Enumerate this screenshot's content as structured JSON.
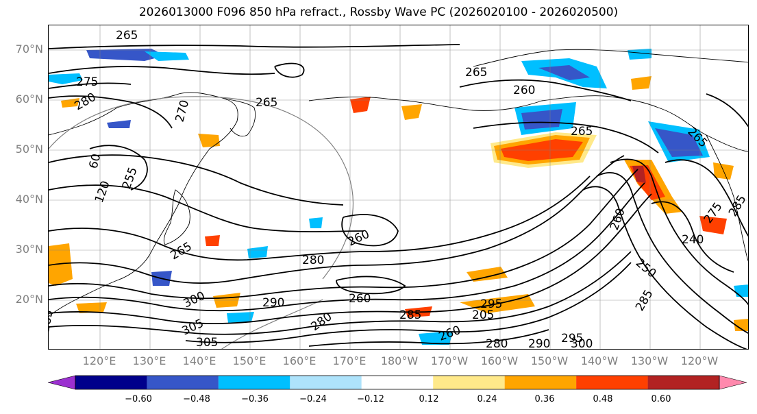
{
  "title": "2026013000 F096 850 hPa refract., Rossby Wave PC (2026020100 - 2026020500)",
  "map": {
    "projection": "equirectangular",
    "lon_range": "110°E to 117°W",
    "lat_range": "10°N to 75°N",
    "lat_ticks": [
      "20°N",
      "30°N",
      "40°N",
      "50°N",
      "60°N",
      "70°N"
    ],
    "lon_ticks": [
      "120°E",
      "130°E",
      "140°E",
      "150°E",
      "160°E",
      "170°E",
      "180°W",
      "170°W",
      "160°W",
      "150°W",
      "140°W",
      "130°W",
      "120°W"
    ],
    "contour_color": "#000000",
    "grid_color": "#808080"
  },
  "contour_labels": [
    {
      "text": "265"
    },
    {
      "text": "275"
    },
    {
      "text": "280"
    },
    {
      "text": "270"
    },
    {
      "text": "265"
    },
    {
      "text": "260"
    },
    {
      "text": "265"
    },
    {
      "text": "265"
    },
    {
      "text": "260"
    },
    {
      "text": "280"
    },
    {
      "text": "265"
    },
    {
      "text": "260"
    },
    {
      "text": "290"
    },
    {
      "text": "285"
    },
    {
      "text": "280"
    },
    {
      "text": "260"
    },
    {
      "text": "280"
    },
    {
      "text": "290"
    },
    {
      "text": "295"
    },
    {
      "text": "300"
    },
    {
      "text": "300"
    },
    {
      "text": "305"
    },
    {
      "text": "305"
    },
    {
      "text": "285"
    },
    {
      "text": "240"
    },
    {
      "text": "250"
    },
    {
      "text": "260"
    },
    {
      "text": "255"
    },
    {
      "text": "120"
    },
    {
      "text": "265"
    },
    {
      "text": "275"
    },
    {
      "text": "285"
    },
    {
      "text": "295"
    },
    {
      "text": "205"
    },
    {
      "text": "285"
    },
    {
      "text": "60"
    }
  ],
  "colorbar": {
    "ticks": [
      "−0.60",
      "−0.48",
      "−0.36",
      "−0.24",
      "−0.12",
      "0.12",
      "0.24",
      "0.36",
      "0.48",
      "0.60"
    ],
    "colors": [
      "#9b30d0",
      "#00008b",
      "#3656c8",
      "#00bfff",
      "#aee3fb",
      "#ffffff",
      "#ffe98a",
      "#ffa500",
      "#ff4000",
      "#b22222",
      "#ff89ad"
    ]
  }
}
